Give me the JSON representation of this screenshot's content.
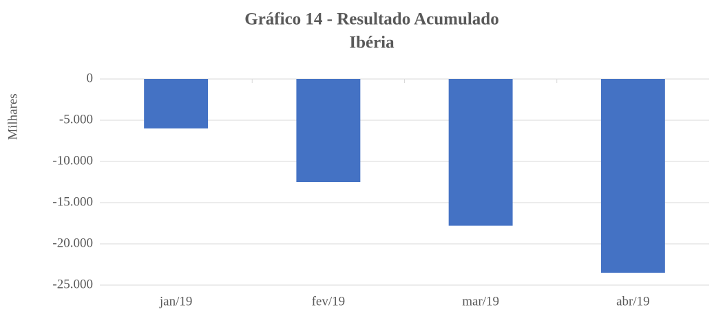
{
  "chart_data": {
    "type": "bar",
    "title": "Gráfico 14 - Resultado Acumulado",
    "subtitle": "Ibéria",
    "y_label": "Milhares",
    "categories": [
      "jan/19",
      "fev/19",
      "mar/19",
      "abr/19"
    ],
    "values": [
      -6000,
      -12500,
      -17800,
      -23500
    ],
    "color": "#4472c4",
    "ylim": [
      -25000,
      0
    ],
    "yticks": [
      0,
      {
        "value": -5000,
        "label": "-5.000"
      },
      {
        "value": -10000,
        "label": "-10.000"
      },
      {
        "value": -15000,
        "label": "-15.000"
      },
      {
        "value": -20000,
        "label": "-20.000"
      },
      {
        "value": -25000,
        "label": "-25.000"
      }
    ],
    "grid": true
  }
}
